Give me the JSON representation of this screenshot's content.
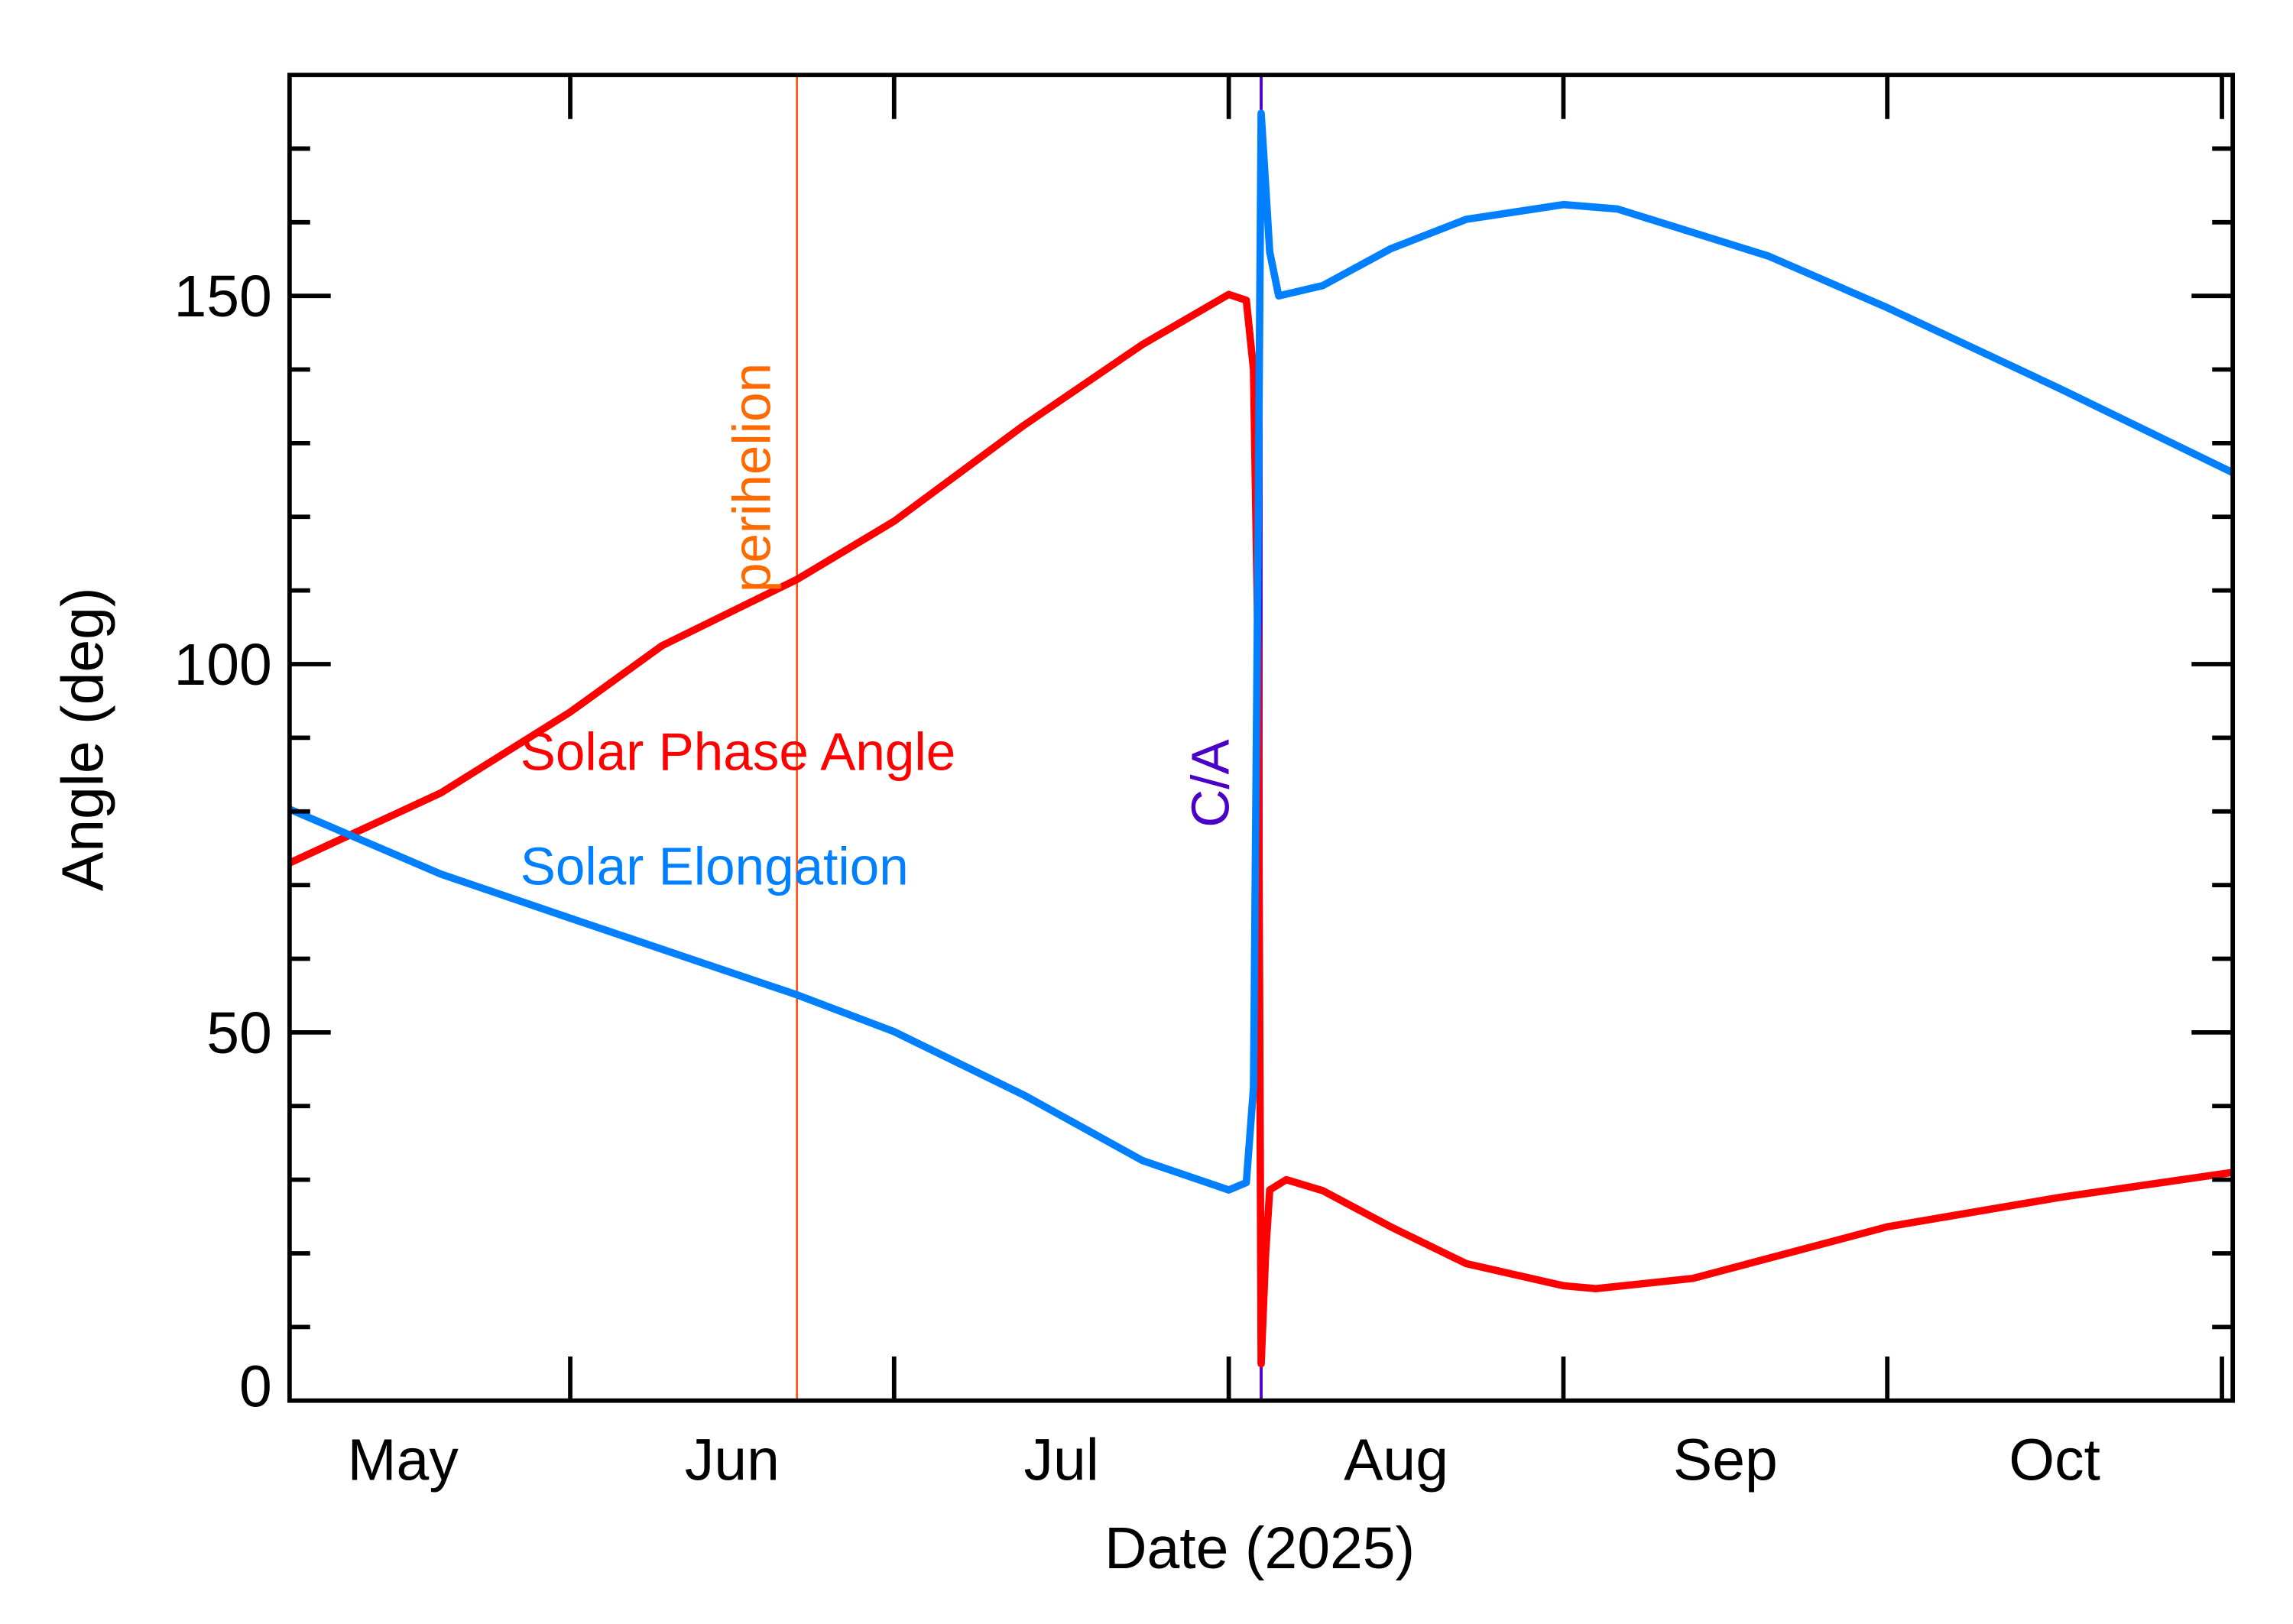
{
  "chart_data": {
    "type": "line",
    "title": "",
    "xlabel": "Date (2025)",
    "ylabel": "Angle (deg)",
    "xlim": [
      "2025-05-06",
      "2025-11-02"
    ],
    "ylim": [
      0,
      180
    ],
    "grid": false,
    "x_tick_labels": [
      {
        "label": "May",
        "month_start": "2025-05-01",
        "month_end": "2025-06-01"
      },
      {
        "label": "Jun",
        "month_start": "2025-06-01",
        "month_end": "2025-07-01"
      },
      {
        "label": "Jul",
        "month_start": "2025-07-01",
        "month_end": "2025-08-01"
      },
      {
        "label": "Aug",
        "month_start": "2025-08-01",
        "month_end": "2025-09-01"
      },
      {
        "label": "Sep",
        "month_start": "2025-09-01",
        "month_end": "2025-10-01"
      },
      {
        "label": "Oct",
        "month_start": "2025-10-01",
        "month_end": "2025-11-01"
      }
    ],
    "x_major_ticks": [
      "2025-06-01",
      "2025-07-01",
      "2025-08-01",
      "2025-09-01",
      "2025-10-01",
      "2025-11-01"
    ],
    "y_major_ticks": [
      0,
      50,
      100,
      150
    ],
    "y_tick_labels": [
      "0",
      "50",
      "100",
      "150"
    ],
    "y_minor_step": 10,
    "legend_placement": "inline-left",
    "series": [
      {
        "name": "Solar Phase Angle",
        "color": "#ff0000",
        "points": [
          [
            "2025-05-06T00:00",
            73
          ],
          [
            "2025-05-20T00:00",
            82.5
          ],
          [
            "2025-06-01T00:00",
            93.5
          ],
          [
            "2025-06-09T12:00",
            102.5
          ],
          [
            "2025-06-22T00:00",
            111.5
          ],
          [
            "2025-07-01T00:00",
            119.4
          ],
          [
            "2025-07-13T00:00",
            132.4
          ],
          [
            "2025-07-24T00:00",
            143.4
          ],
          [
            "2025-08-01T00:00",
            150.2
          ],
          [
            "2025-08-02T15:00",
            149.4
          ],
          [
            "2025-08-03T07:00",
            140
          ],
          [
            "2025-08-03T17:30",
            100
          ],
          [
            "2025-08-04T00:00",
            5
          ],
          [
            "2025-08-04T10:00",
            20
          ],
          [
            "2025-08-04T19:00",
            28.6
          ],
          [
            "2025-08-06T08:00",
            30
          ],
          [
            "2025-08-09T17:00",
            28.5
          ],
          [
            "2025-08-16T00:00",
            23.6
          ],
          [
            "2025-08-23T00:00",
            18.6
          ],
          [
            "2025-09-01T00:00",
            15.6
          ],
          [
            "2025-09-04T00:00",
            15.2
          ],
          [
            "2025-09-13T00:00",
            16.6
          ],
          [
            "2025-10-01T00:00",
            23.6
          ],
          [
            "2025-10-17T00:00",
            27.6
          ],
          [
            "2025-11-02T00:00",
            31
          ]
        ]
      },
      {
        "name": "Solar Elongation",
        "color": "#0080ff",
        "points": [
          [
            "2025-05-06T00:00",
            80.3
          ],
          [
            "2025-05-20T00:00",
            71.5
          ],
          [
            "2025-06-01T00:00",
            65.5
          ],
          [
            "2025-06-22T00:00",
            55.1
          ],
          [
            "2025-07-01T00:00",
            50.1
          ],
          [
            "2025-07-13T00:00",
            41.5
          ],
          [
            "2025-07-24T00:00",
            32.6
          ],
          [
            "2025-08-01T00:00",
            28.6
          ],
          [
            "2025-08-02T15:00",
            29.6
          ],
          [
            "2025-08-03T07:00",
            42.5
          ],
          [
            "2025-08-03T17:30",
            120
          ],
          [
            "2025-08-04T00:00",
            174.8
          ],
          [
            "2025-08-04T10:00",
            165
          ],
          [
            "2025-08-04T19:00",
            156
          ],
          [
            "2025-08-05T15:00",
            150
          ],
          [
            "2025-08-09T17:00",
            151.4
          ],
          [
            "2025-08-16T00:00",
            156.4
          ],
          [
            "2025-08-23T00:00",
            160.4
          ],
          [
            "2025-09-01T00:00",
            162.4
          ],
          [
            "2025-09-06T00:00",
            161.8
          ],
          [
            "2025-09-20T00:00",
            155.4
          ],
          [
            "2025-10-01T00:00",
            148.4
          ],
          [
            "2025-10-17T00:00",
            137.4
          ],
          [
            "2025-11-02T00:00",
            126
          ]
        ]
      }
    ],
    "annotations": [
      {
        "text": "perihelion",
        "type": "vertical-line",
        "date": "2025-06-22",
        "color": "#ff4800",
        "label_color": "#ff6a00"
      },
      {
        "text": "C/A",
        "type": "vertical-line",
        "date": "2025-08-04",
        "color": "#5000d0",
        "label_color": "#4b00c8"
      }
    ]
  }
}
